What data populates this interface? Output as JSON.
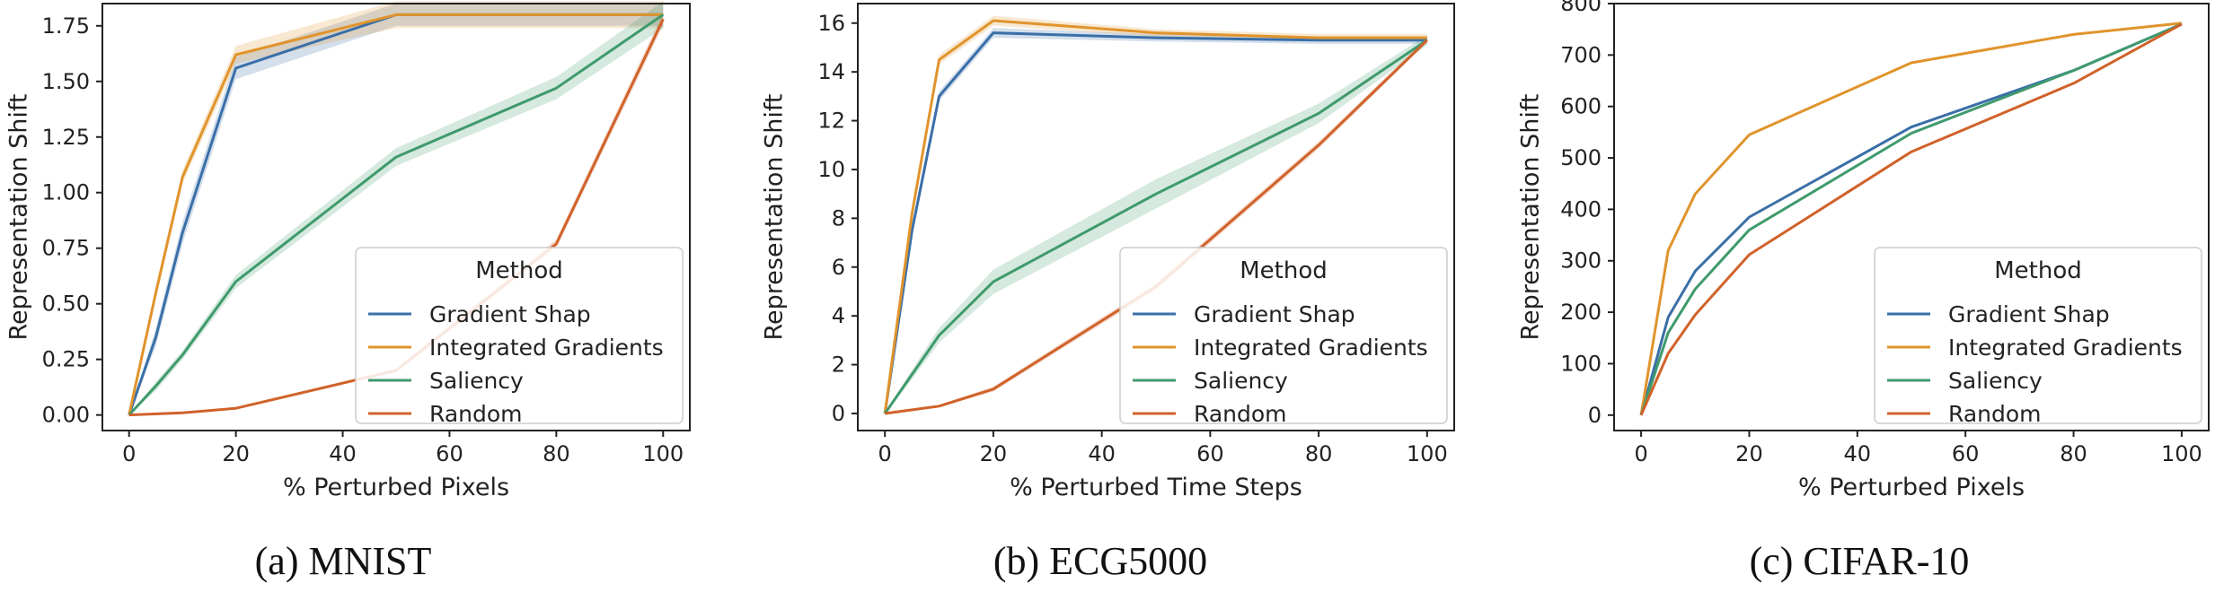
{
  "captions": [
    "(a) MNIST",
    "(b) ECG5000",
    "(c) CIFAR-10"
  ],
  "chart_data": [
    {
      "type": "line",
      "title": "",
      "xlabel": "% Perturbed Pixels",
      "ylabel": "Representation Shift",
      "xlim": [
        -5,
        105
      ],
      "ylim": [
        -0.07,
        1.85
      ],
      "xticks": [
        0,
        20,
        40,
        60,
        80,
        100
      ],
      "yticks": [
        0.0,
        0.25,
        0.5,
        0.75,
        1.0,
        1.25,
        1.5,
        1.75
      ],
      "ytick_labels": [
        "0.00",
        "0.25",
        "0.50",
        "0.75",
        "1.00",
        "1.25",
        "1.50",
        "1.75"
      ],
      "grid": false,
      "legend": {
        "title": "Method",
        "placement": "lower-right"
      },
      "series": [
        {
          "name": "Gradient Shap",
          "color": "#3a6fa8",
          "x": [
            0,
            5,
            10,
            20,
            50,
            80,
            100
          ],
          "y": [
            0,
            0.35,
            0.82,
            1.56,
            1.8,
            1.8,
            1.8
          ],
          "band": [
            0,
            0.04,
            0.05,
            0.05,
            0.05,
            0.05,
            0.05
          ]
        },
        {
          "name": "Integrated Gradients",
          "color": "#e0942c",
          "x": [
            0,
            5,
            10,
            20,
            50,
            80,
            100
          ],
          "y": [
            0,
            0.55,
            1.07,
            1.62,
            1.8,
            1.8,
            1.8
          ],
          "band": [
            0,
            0.03,
            0.03,
            0.04,
            0.06,
            0.06,
            0.06
          ]
        },
        {
          "name": "Saliency",
          "color": "#3f9a6c",
          "x": [
            0,
            5,
            10,
            20,
            50,
            80,
            100
          ],
          "y": [
            0,
            0.13,
            0.27,
            0.6,
            1.16,
            1.47,
            1.8
          ],
          "band": [
            0,
            0.02,
            0.02,
            0.03,
            0.04,
            0.05,
            0.06
          ]
        },
        {
          "name": "Random",
          "color": "#d0622a",
          "x": [
            0,
            10,
            20,
            50,
            80,
            100
          ],
          "y": [
            0,
            0.01,
            0.03,
            0.2,
            0.77,
            1.78
          ],
          "band": [
            0,
            0,
            0,
            0.01,
            0.02,
            0.03
          ]
        }
      ]
    },
    {
      "type": "line",
      "title": "",
      "xlabel": "% Perturbed Time Steps",
      "ylabel": "Representation Shift",
      "xlim": [
        -5,
        105
      ],
      "ylim": [
        -0.7,
        16.8
      ],
      "xticks": [
        0,
        20,
        40,
        60,
        80,
        100
      ],
      "yticks": [
        0,
        2,
        4,
        6,
        8,
        10,
        12,
        14,
        16
      ],
      "ytick_labels": [
        "0",
        "2",
        "4",
        "6",
        "8",
        "10",
        "12",
        "14",
        "16"
      ],
      "grid": false,
      "legend": {
        "title": "Method",
        "placement": "lower-right"
      },
      "series": [
        {
          "name": "Gradient Shap",
          "color": "#3a6fa8",
          "x": [
            0,
            5,
            10,
            20,
            50,
            80,
            100
          ],
          "y": [
            0,
            7.5,
            13.0,
            15.6,
            15.4,
            15.3,
            15.3
          ],
          "band": [
            0,
            0.15,
            0.2,
            0.2,
            0.15,
            0.15,
            0.15
          ]
        },
        {
          "name": "Integrated Gradients",
          "color": "#e0942c",
          "x": [
            0,
            5,
            10,
            20,
            50,
            80,
            100
          ],
          "y": [
            0,
            8.2,
            14.5,
            16.1,
            15.6,
            15.4,
            15.4
          ],
          "band": [
            0,
            0.15,
            0.2,
            0.2,
            0.15,
            0.15,
            0.15
          ]
        },
        {
          "name": "Saliency",
          "color": "#3f9a6c",
          "x": [
            0,
            5,
            10,
            20,
            50,
            80,
            100
          ],
          "y": [
            0,
            1.6,
            3.2,
            5.4,
            9.0,
            12.3,
            15.3
          ],
          "band": [
            0,
            0.2,
            0.3,
            0.5,
            0.6,
            0.4,
            0.2
          ]
        },
        {
          "name": "Random",
          "color": "#d0622a",
          "x": [
            0,
            10,
            20,
            50,
            80,
            100
          ],
          "y": [
            0,
            0.3,
            1.0,
            5.2,
            11.0,
            15.3
          ],
          "band": [
            0,
            0.05,
            0.1,
            0.15,
            0.15,
            0.1
          ]
        }
      ]
    },
    {
      "type": "line",
      "title": "",
      "xlabel": "% Perturbed Pixels",
      "ylabel": "Representation Shift",
      "xlim": [
        -5,
        105
      ],
      "ylim": [
        -30,
        800
      ],
      "xticks": [
        0,
        20,
        40,
        60,
        80,
        100
      ],
      "yticks": [
        0,
        100,
        200,
        300,
        400,
        500,
        600,
        700,
        800
      ],
      "ytick_labels": [
        "0",
        "100",
        "200",
        "300",
        "400",
        "500",
        "600",
        "700",
        "800"
      ],
      "grid": false,
      "legend": {
        "title": "Method",
        "placement": "lower-right"
      },
      "series": [
        {
          "name": "Gradient Shap",
          "color": "#3a6fa8",
          "x": [
            0,
            5,
            10,
            20,
            50,
            80,
            100
          ],
          "y": [
            0,
            190,
            280,
            385,
            560,
            670,
            760
          ],
          "band": [
            0,
            0,
            0,
            0,
            0,
            0,
            0
          ]
        },
        {
          "name": "Integrated Gradients",
          "color": "#e0942c",
          "x": [
            0,
            5,
            10,
            20,
            50,
            80,
            100
          ],
          "y": [
            0,
            320,
            430,
            545,
            685,
            740,
            762
          ],
          "band": [
            0,
            0,
            0,
            0,
            0,
            0,
            0
          ]
        },
        {
          "name": "Saliency",
          "color": "#3f9a6c",
          "x": [
            0,
            5,
            10,
            20,
            50,
            80,
            100
          ],
          "y": [
            0,
            160,
            245,
            360,
            548,
            670,
            760
          ],
          "band": [
            0,
            0,
            0,
            0,
            0,
            0,
            0
          ]
        },
        {
          "name": "Random",
          "color": "#d0622a",
          "x": [
            0,
            5,
            10,
            20,
            50,
            80,
            100
          ],
          "y": [
            0,
            120,
            195,
            312,
            512,
            645,
            760
          ],
          "band": [
            0,
            0,
            0,
            0,
            0,
            0,
            0
          ]
        }
      ]
    }
  ]
}
